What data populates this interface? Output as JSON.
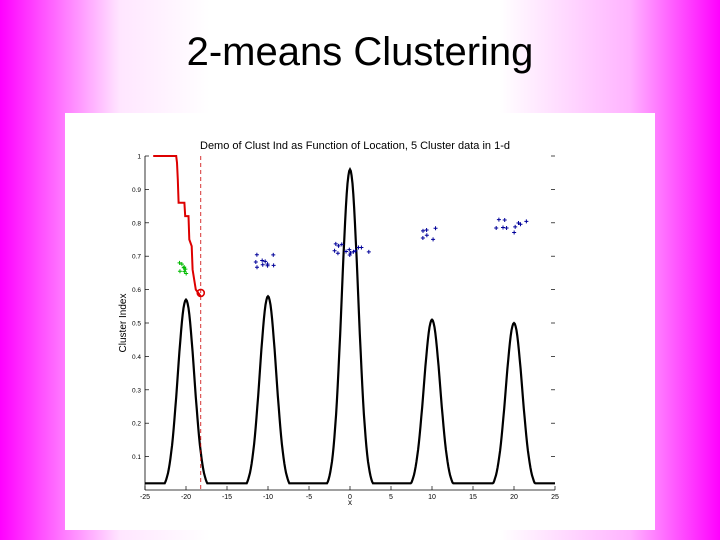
{
  "slide": {
    "title": "2-means Clustering"
  },
  "colors": {
    "background_edge": "#ff00ff",
    "curve": "#000000",
    "index_line": "#dd0000",
    "cluster_points": "#000099",
    "current_points": "#00bb00",
    "dashed_line": "#cc0000"
  },
  "chart_data": {
    "type": "line",
    "title": "Demo of Clust Ind as Function of Location, 5 Cluster data in 1-d",
    "xlabel": "x",
    "ylabel": "Cluster Index",
    "xlim": [
      -25,
      25
    ],
    "ylim": [
      0,
      1
    ],
    "x_ticks": [
      -25,
      -20,
      -15,
      -10,
      -5,
      0,
      5,
      10,
      15,
      20,
      25
    ],
    "x_tick_labels": [
      "-25",
      "-20",
      "-15",
      "-10",
      "-5",
      "0",
      "5",
      "10",
      "15",
      "20",
      "25"
    ],
    "y_ticks": [
      0.1,
      0.2,
      0.3,
      0.4,
      0.5,
      0.6,
      0.7,
      0.8,
      0.9,
      1
    ],
    "y_tick_labels": [
      "0.1",
      "0.2",
      "0.3",
      "0.4",
      "0.5",
      "0.6",
      "0.7",
      "0.8",
      "0.9",
      "1"
    ],
    "grid": false,
    "density_peaks": [
      {
        "center": -20,
        "height": 0.57,
        "sd": 1.0
      },
      {
        "center": -10,
        "height": 0.58,
        "sd": 1.0
      },
      {
        "center": 0,
        "height": 0.96,
        "sd": 1.0
      },
      {
        "center": 10,
        "height": 0.51,
        "sd": 1.0
      },
      {
        "center": 20,
        "height": 0.5,
        "sd": 1.0
      }
    ],
    "density_baseline": 0.02,
    "cluster_index_curve": {
      "x": [
        -24,
        -21.2,
        -21.1,
        -21.0,
        -20.9,
        -20.2,
        -20.1,
        -19.7,
        -19.6,
        -19.3,
        -19.2,
        -18.8,
        -18.2
      ],
      "y": [
        1.0,
        1.0,
        0.98,
        0.93,
        0.86,
        0.86,
        0.82,
        0.82,
        0.75,
        0.73,
        0.66,
        0.6,
        0.58
      ]
    },
    "dashed_divider_x": -18.2,
    "current_marker": {
      "x": -18.2,
      "y": 0.59
    },
    "point_clusters": [
      {
        "center_x": -20.2,
        "center_y": 0.665,
        "spread_x": 0.7,
        "spread_y": 0.02,
        "count": 8,
        "color": "green"
      },
      {
        "center_x": -10.5,
        "center_y": 0.685,
        "spread_x": 1.3,
        "spread_y": 0.02,
        "count": 10,
        "color": "blue"
      },
      {
        "center_x": 0.2,
        "center_y": 0.72,
        "spread_x": 2.3,
        "spread_y": 0.02,
        "count": 14,
        "color": "blue"
      },
      {
        "center_x": 9.5,
        "center_y": 0.765,
        "spread_x": 1.3,
        "spread_y": 0.02,
        "count": 6,
        "color": "blue"
      },
      {
        "center_x": 19.8,
        "center_y": 0.79,
        "spread_x": 2.0,
        "spread_y": 0.02,
        "count": 10,
        "color": "blue"
      }
    ]
  }
}
